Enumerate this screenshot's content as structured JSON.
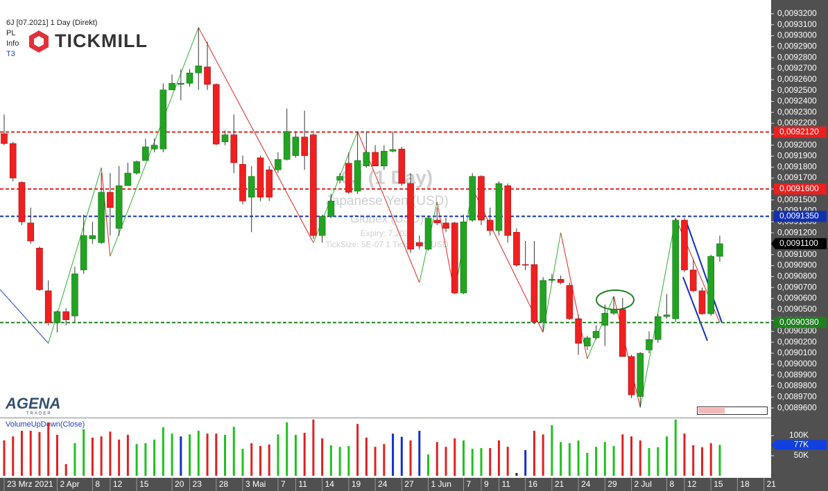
{
  "header": {
    "instrument": "6J [07.2021] 1 Day (Direkt)",
    "items": [
      "PL",
      "Info",
      "T3"
    ],
    "brand": "TICKMILL",
    "footer_brand": "AGENA",
    "footer_sub": "TRADER"
  },
  "chart_data": {
    "type": "candlestick",
    "watermark": [
      "6J (1 Day)",
      "Japanese Yen (USD)",
      "Globex (USD)",
      "Expiry: 7.2021",
      "TickSize: 5E-07  1 Tick=6,25 USD"
    ],
    "categories": [
      "23 Mrz 2021",
      null,
      null,
      null,
      null,
      null,
      "2 Apr",
      null,
      null,
      null,
      "8",
      null,
      "12",
      null,
      null,
      "15",
      null,
      null,
      null,
      "20",
      null,
      "23",
      null,
      null,
      "28",
      null,
      null,
      "3 Mai",
      null,
      null,
      null,
      "7",
      null,
      "11",
      null,
      null,
      "14",
      null,
      null,
      "19",
      null,
      null,
      "24",
      null,
      null,
      "27",
      null,
      null,
      "1 Jun",
      null,
      null,
      null,
      "7",
      null,
      "9",
      null,
      "11",
      null,
      null,
      "16",
      null,
      null,
      "21",
      null,
      null,
      "24",
      null,
      null,
      "29",
      null,
      null,
      "2 Jul",
      null,
      null,
      null,
      "8",
      null,
      "12",
      null,
      null,
      "15",
      null,
      null,
      "18",
      null,
      null,
      "21"
    ],
    "open": [
      0.0092105,
      0.0092015,
      0.009166,
      0.009129,
      0.009106,
      0.009067,
      0.009038,
      0.009048,
      0.009044,
      0.009086,
      0.0091145,
      0.009111,
      0.009157,
      0.009124,
      0.009163,
      0.0091745,
      0.009186,
      0.0091965,
      0.0091965,
      0.0092505,
      0.0092555,
      0.0092565,
      0.009266,
      0.0092715,
      0.0092555,
      0.009203,
      0.0092095,
      0.0091825,
      0.0091525,
      0.0091885,
      0.0091775,
      0.0091775,
      0.009187,
      0.0091905,
      0.0092075,
      0.0092095,
      0.0091175,
      0.009135,
      0.009168,
      0.0091835,
      0.009158,
      0.009181,
      0.0091935,
      0.009181,
      0.0091945,
      0.0091965,
      0.009165,
      0.009111,
      0.009105,
      0.0091315,
      0.009129,
      0.009129,
      0.009065,
      0.0091315,
      0.0091715,
      0.0091315,
      0.009122,
      0.009163,
      0.0091205,
      0.009091,
      0.009091,
      0.0090385,
      0.0090765,
      0.0090775,
      0.009072,
      0.0090415,
      0.0090165,
      0.009024,
      0.0090355,
      0.0090465,
      0.00905,
      0.009007,
      0.0089705,
      0.009013,
      0.0090225,
      0.0090435,
      0.0090415,
      0.0091315,
      0.009086,
      0.009067,
      0.009046,
      0.0090985,
      null,
      null,
      null,
      null,
      null
    ],
    "high": [
      0.009228,
      0.009203,
      0.009167,
      0.009143,
      0.0091075,
      0.0090765,
      0.009049,
      0.009051,
      0.009089,
      0.0091365,
      0.00913,
      0.0091745,
      0.0091745,
      0.009181,
      0.009184,
      0.009186,
      0.009206,
      0.009206,
      0.0092565,
      0.0092645,
      0.0092695,
      0.0092695,
      0.0093075,
      0.0092945,
      0.0092565,
      0.0092135,
      0.009228,
      0.0091905,
      0.009181,
      0.0091905,
      0.009181,
      0.0091935,
      0.0092335,
      0.0092125,
      0.0092315,
      0.0092105,
      0.0091365,
      0.0091555,
      0.0091745,
      0.0091935,
      0.0092125,
      0.0092125,
      0.0092,
      0.0092,
      0.0092125,
      0.0091985,
      0.0091745,
      0.0091175,
      0.009135,
      0.009143,
      0.0091335,
      0.00913,
      0.0091365,
      0.0091745,
      0.0091725,
      0.009143,
      0.009167,
      0.009165,
      0.009124,
      0.0091125,
      0.0091125,
      0.0090795,
      0.0090825,
      0.009081,
      0.0090745,
      0.009045,
      0.009026,
      0.0090355,
      0.0090545,
      0.009062,
      0.0090605,
      0.0090085,
      0.009011,
      0.00903,
      0.009046,
      0.009064,
      0.0091335,
      0.0091335,
      0.0090955,
      0.00907,
      0.0091,
      0.0091175,
      null,
      null,
      null,
      null,
      null
    ],
    "low": [
      0.0092,
      0.009167,
      0.009127,
      0.00911,
      0.009067,
      0.0090355,
      0.009029,
      0.0090355,
      0.0090385,
      0.0090825,
      0.00911,
      0.00911,
      0.0091175,
      0.0091175,
      0.009163,
      0.009173,
      0.009186,
      0.0091935,
      0.0091935,
      0.0092505,
      0.009241,
      0.0092535,
      0.0092505,
      0.0092505,
      0.0092,
      0.0092,
      0.0091745,
      0.009146,
      0.0091205,
      0.009149,
      0.009149,
      0.0091745,
      0.009186,
      0.0091885,
      0.0091775,
      0.0091145,
      0.009111,
      0.0091335,
      0.009165,
      0.0091555,
      0.0091555,
      0.0091795,
      0.009181,
      0.0091775,
      0.0091935,
      0.009163,
      0.0091015,
      0.009105,
      0.0091035,
      0.009127,
      0.0091205,
      0.009064,
      0.009064,
      0.00913,
      0.009127,
      0.0091175,
      0.0091175,
      0.009111,
      0.009089,
      0.009086,
      0.0090365,
      0.00903,
      0.0090745,
      0.009073,
      0.0090405,
      0.0090085,
      0.009013,
      0.0090225,
      0.0090165,
      0.009045,
      0.009007,
      0.008969,
      0.0089605,
      0.00901,
      0.0090195,
      0.0090415,
      0.0090385,
      0.009084,
      0.0090655,
      0.009045,
      0.009044,
      0.0090935,
      null,
      null,
      null,
      null,
      null
    ],
    "close": [
      0.0092015,
      0.00917,
      0.00913,
      0.0091125,
      0.009068,
      0.009038,
      0.009048,
      0.0090405,
      0.0090825,
      0.0091175,
      0.0091175,
      0.009157,
      0.009143,
      0.009163,
      0.0091745,
      0.009185,
      0.0091985,
      0.0092,
      0.0092505,
      0.0092565,
      0.0092565,
      0.009266,
      0.0092725,
      0.0092555,
      0.009201,
      0.0092095,
      0.009184,
      0.009149,
      0.0091715,
      0.0091525,
      0.0091525,
      0.009187,
      0.0092125,
      0.0092075,
      0.0091905,
      0.0091175,
      0.009135,
      0.009149,
      0.0091715,
      0.009157,
      0.009186,
      0.0091935,
      0.009181,
      0.0091945,
      0.009196,
      0.009165,
      0.009105,
      0.009108,
      0.0091335,
      0.009129,
      0.009124,
      0.009065,
      0.00913,
      0.0091715,
      0.0091315,
      0.009122,
      0.009165,
      0.0091175,
      0.0090905,
      0.0090905,
      0.0090385,
      0.0090765,
      0.0090775,
      0.0090745,
      0.0090415,
      0.009019,
      0.009024,
      0.00903,
      0.0090465,
      0.00905,
      0.009007,
      0.008972,
      0.00901,
      0.0090225,
      0.0090435,
      0.009045,
      0.0091315,
      0.009086,
      0.009067,
      0.009046,
      0.0090985,
      0.00911,
      null,
      null,
      null,
      null,
      null
    ],
    "up_color": "#22a422",
    "down_color": "#f02020",
    "ylim": [
      0.0089512,
      0.0093326
    ],
    "yticks": [
      {
        "value": 0.00932,
        "label": "0,0093200"
      },
      {
        "value": 0.00931,
        "label": "0,0093100"
      },
      {
        "value": 0.0093,
        "label": "0,0093000"
      },
      {
        "value": 0.00929,
        "label": "0,0092900"
      },
      {
        "value": 0.00928,
        "label": "0,0092800"
      },
      {
        "value": 0.00927,
        "label": "0,0092700"
      },
      {
        "value": 0.00926,
        "label": "0,0092600"
      },
      {
        "value": 0.00925,
        "label": "0,0092500"
      },
      {
        "value": 0.00924,
        "label": "0,0092400"
      },
      {
        "value": 0.00923,
        "label": "0,0092300"
      },
      {
        "value": 0.00922,
        "label": "0,0092200"
      },
      {
        "value": 0.00921,
        "label": "0,0092100"
      },
      {
        "value": 0.0092,
        "label": "0,0092000"
      },
      {
        "value": 0.00919,
        "label": "0,0091900"
      },
      {
        "value": 0.00918,
        "label": "0,0091800"
      },
      {
        "value": 0.00917,
        "label": "0,0091700"
      },
      {
        "value": 0.00916,
        "label": "0,0091600"
      },
      {
        "value": 0.00915,
        "label": "0,0091500"
      },
      {
        "value": 0.00914,
        "label": "0,0091400"
      },
      {
        "value": 0.00913,
        "label": "0,0091300"
      },
      {
        "value": 0.00912,
        "label": "0,0091200"
      },
      {
        "value": 0.00911,
        "label": "0,0091100"
      },
      {
        "value": 0.0091,
        "label": "0,0091000"
      },
      {
        "value": 0.00909,
        "label": "0,0090900"
      },
      {
        "value": 0.00908,
        "label": "0,0090800"
      },
      {
        "value": 0.00907,
        "label": "0,0090700"
      },
      {
        "value": 0.00906,
        "label": "0,0090600"
      },
      {
        "value": 0.00905,
        "label": "0,0090500"
      },
      {
        "value": 0.00904,
        "label": "0,0090400"
      },
      {
        "value": 0.00903,
        "label": "0,0090300"
      },
      {
        "value": 0.00902,
        "label": "0,0090200"
      },
      {
        "value": 0.00901,
        "label": "0,0090100"
      },
      {
        "value": 0.009,
        "label": "0,0090000"
      },
      {
        "value": 0.00899,
        "label": "0,0089900"
      },
      {
        "value": 0.00898,
        "label": "0,0089800"
      },
      {
        "value": 0.00897,
        "label": "0,0089700"
      },
      {
        "value": 0.00896,
        "label": "0,0089600"
      }
    ],
    "levels": [
      {
        "value": 0.009212,
        "label": "0,0092120",
        "color": "#e82020"
      },
      {
        "value": 0.00916,
        "label": "0,0091600",
        "color": "#e82020"
      },
      {
        "value": 0.009135,
        "label": "0,0091350",
        "color": "#1030b0"
      },
      {
        "value": 0.009038,
        "label": "0,0090380",
        "color": "#208020"
      }
    ],
    "last_price": {
      "value": 0.00911,
      "label": "0,0091100",
      "color": "#000000"
    },
    "zigzag": [
      {
        "bar": 5,
        "price": 0.009019
      },
      {
        "bar": 11,
        "price": 0.0091795
      },
      {
        "bar": 12,
        "price": 0.0090985
      },
      {
        "bar": 22,
        "price": 0.0093075
      },
      {
        "bar": 35,
        "price": 0.009111
      },
      {
        "bar": 40,
        "price": 0.0092125
      },
      {
        "bar": 47,
        "price": 0.0090745
      },
      {
        "bar": 49,
        "price": 0.009148
      },
      {
        "bar": 51,
        "price": 0.0090645
      },
      {
        "bar": 53,
        "price": 0.0091605
      },
      {
        "bar": 61,
        "price": 0.009029
      },
      {
        "bar": 63,
        "price": 0.00912
      },
      {
        "bar": 66,
        "price": 0.009005
      },
      {
        "bar": 69,
        "price": 0.009062
      },
      {
        "bar": 72,
        "price": 0.0089605
      },
      {
        "bar": 76,
        "price": 0.0091335
      },
      {
        "bar": 81,
        "price": 0.009038
      }
    ],
    "zigzag_up_color": "#30b030",
    "zigzag_down_color": "#e82020",
    "volume": {
      "title": "VolumeUpDown(Close)",
      "values": [
        88000,
        98000,
        112000,
        112000,
        109000,
        133000,
        102000,
        29000,
        81000,
        116000,
        95000,
        98000,
        110000,
        90000,
        102000,
        79000,
        81000,
        90000,
        121000,
        105000,
        98000,
        103000,
        112000,
        105000,
        105000,
        102000,
        122000,
        67000,
        81000,
        74000,
        78000,
        103000,
        133000,
        102000,
        107000,
        140000,
        93000,
        76000,
        72000,
        74000,
        129000,
        95000,
        72000,
        79000,
        105000,
        97000,
        88000,
        112000,
        53000,
        84000,
        72000,
        93000,
        88000,
        67000,
        69000,
        69000,
        88000,
        72000,
        7000,
        64000,
        112000,
        103000,
        126000,
        84000,
        81000,
        88000,
        57000,
        72000,
        84000,
        74000,
        103000,
        98000,
        88000,
        69000,
        71000,
        98000,
        140000,
        105000,
        76000,
        71000,
        81000,
        77000,
        null,
        null,
        null,
        null,
        null
      ],
      "colors": [
        "#e02020",
        "#e02020",
        "#e02020",
        "#e02020",
        "#e02020",
        "#e02020",
        "#e02020",
        "#e02020",
        "#20c020",
        "#20c020",
        "#e02020",
        "#e02020",
        "#e02020",
        "#e02020",
        "#e02020",
        "#20c020",
        "#20c020",
        "#20c020",
        "#20c020",
        "#20c020",
        "#1030d0",
        "#20c020",
        "#20c020",
        "#e02020",
        "#e02020",
        "#20c020",
        "#20c020",
        "#20c020",
        "#e02020",
        "#e02020",
        "#e02020",
        "#20c020",
        "#20c020",
        "#20c020",
        "#e02020",
        "#e02020",
        "#e02020",
        "#20c020",
        "#20c020",
        "#20c020",
        "#e02020",
        "#e02020",
        "#e02020",
        "#e02020",
        "#1030d0",
        "#1030d0",
        "#e02020",
        "#1030d0",
        "#20c020",
        "#e02020",
        "#e02020",
        "#e02020",
        "#20c020",
        "#20c020",
        "#20c020",
        "#e02020",
        "#e02020",
        "#e02020",
        "#303030",
        "#1030d0",
        "#e02020",
        "#e02020",
        "#20c020",
        "#20c020",
        "#20c020",
        "#20c020",
        "#20c020",
        "#20c020",
        "#20c020",
        "#20c020",
        "#e02020",
        "#e02020",
        "#e02020",
        "#20c020",
        "#20c020",
        "#20c020",
        "#20c020",
        "#e02020",
        "#e02020",
        "#e02020",
        "#e02020",
        "#20c020",
        null,
        null,
        null,
        null,
        null
      ],
      "ylim": [
        0,
        143100
      ],
      "yticks": [
        {
          "value": 100000,
          "label": "100K"
        },
        {
          "value": 50000,
          "label": "50K"
        }
      ],
      "current": {
        "value": 77000,
        "label": "77K",
        "color": "#1040e0"
      }
    }
  }
}
